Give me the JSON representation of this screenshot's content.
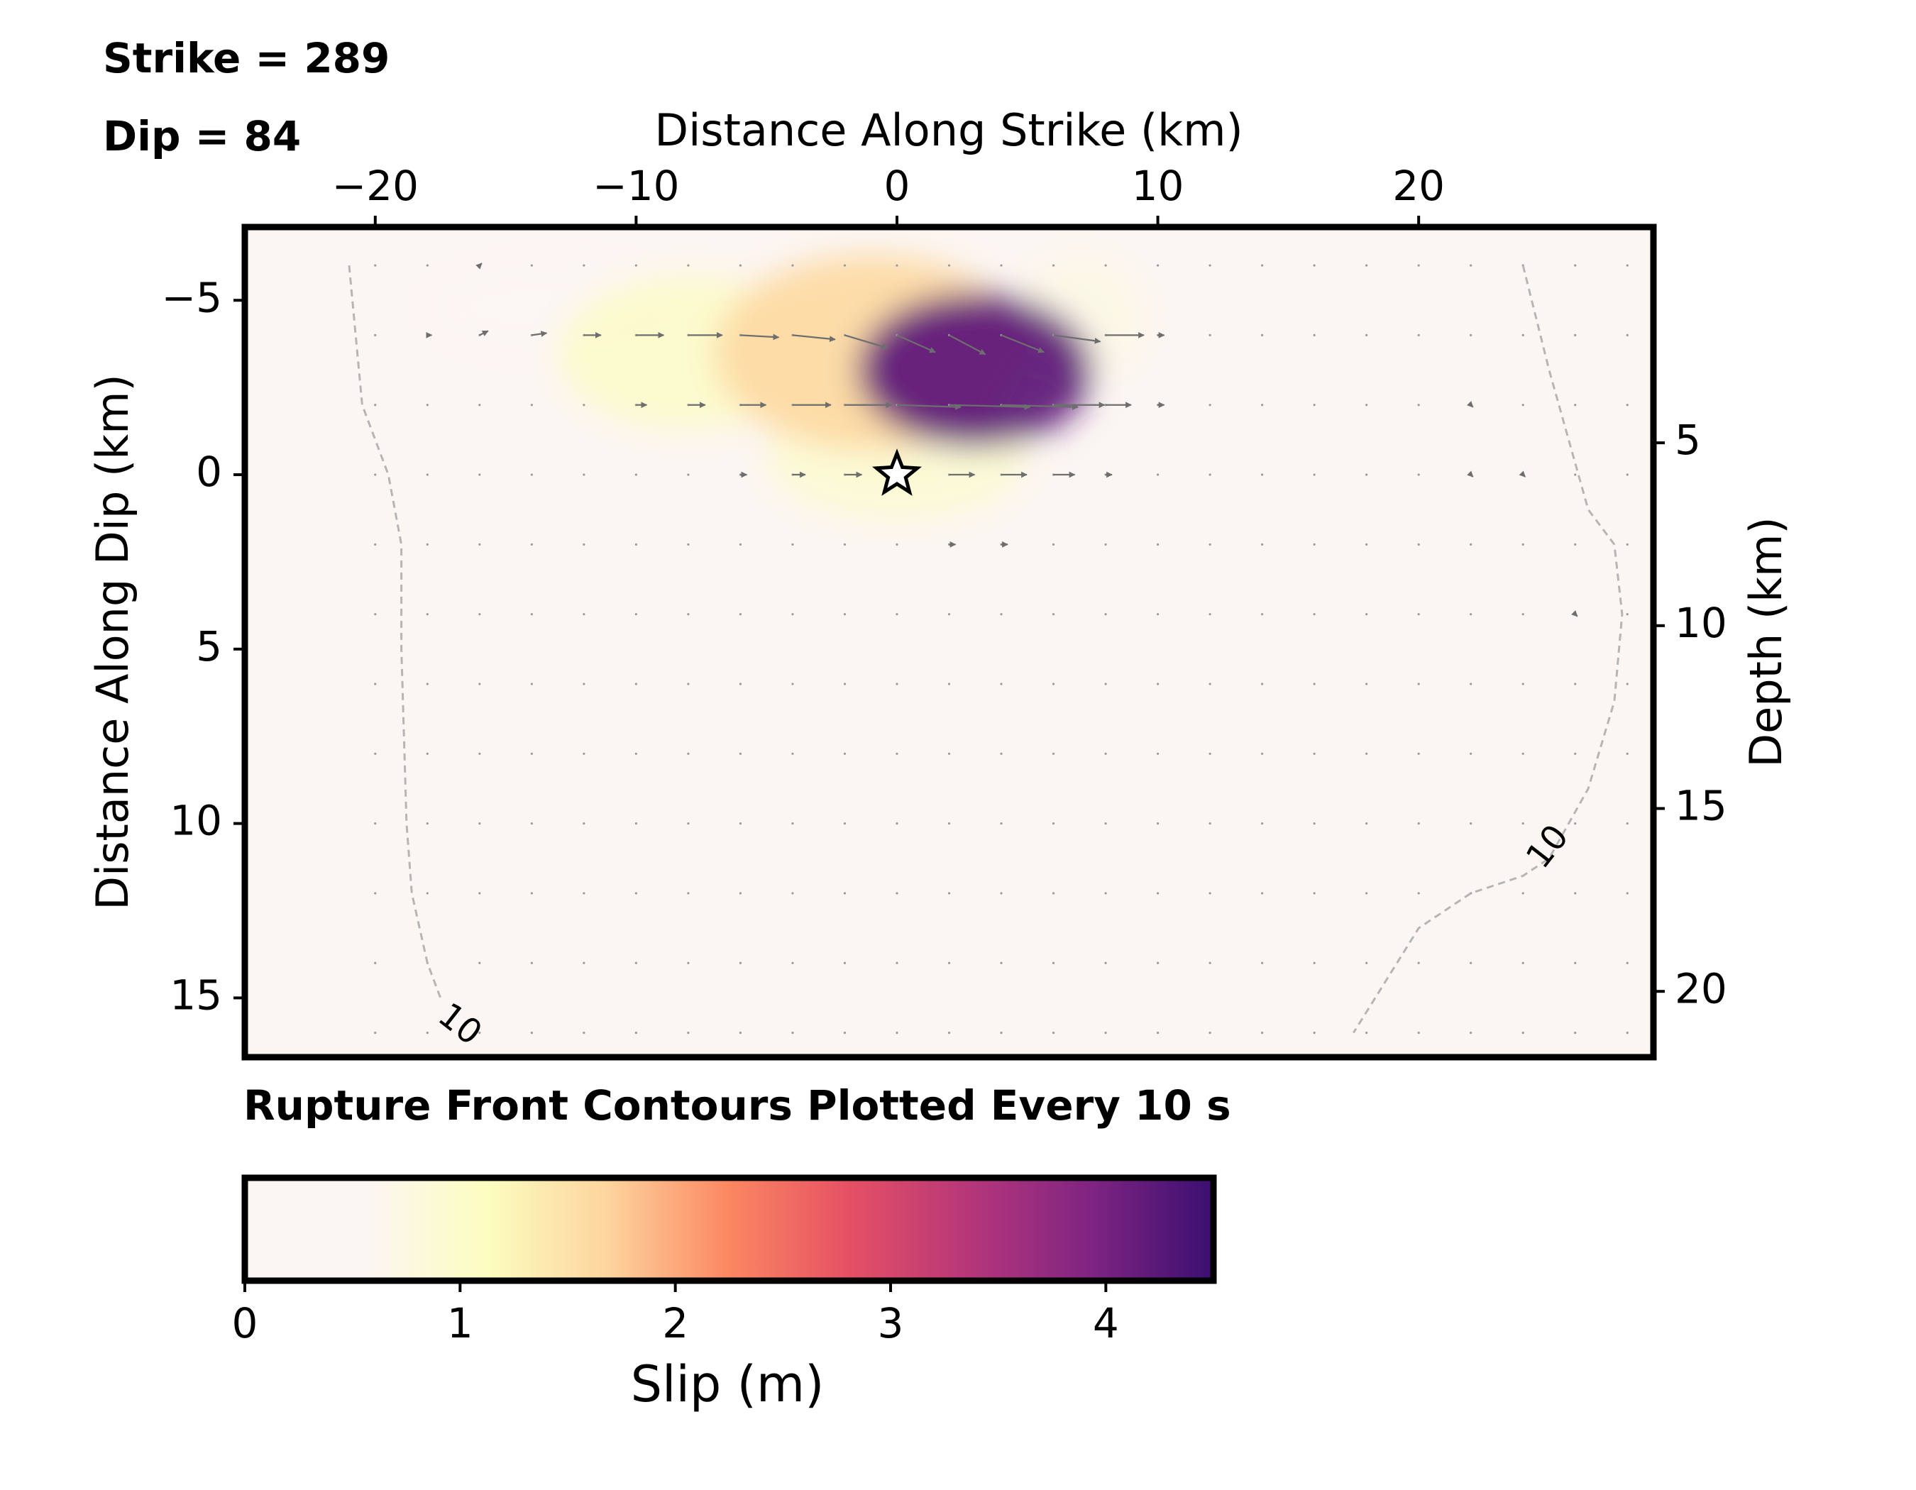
{
  "chart_data": {
    "type": "heatmap",
    "title_lines": [
      "Strike = 289",
      "Dip = 84"
    ],
    "note": "Rupture Front Contours Plotted Every 10 s",
    "xlabel": "Distance Along Strike (km)",
    "ylabel": "Distance Along Dip (km)",
    "y2label": "Depth (km)",
    "xlim": [
      -25,
      29
    ],
    "ylim": [
      16.7,
      -7.1
    ],
    "y2lim": [
      21.8,
      -0.9
    ],
    "xticks": [
      -20,
      -10,
      0,
      10,
      20
    ],
    "xtick_labels": [
      "−20",
      "−10",
      "0",
      "10",
      "20"
    ],
    "yticks": [
      -5,
      0,
      5,
      10,
      15
    ],
    "ytick_labels": [
      "−5",
      "0",
      "5",
      "10",
      "15"
    ],
    "y2ticks": [
      5,
      10,
      15,
      20
    ],
    "y2tick_labels": [
      "5",
      "10",
      "15",
      "20"
    ],
    "colorbar": {
      "label": "Slip (m)",
      "range": [
        0,
        4.5
      ],
      "ticks": [
        0,
        1,
        2,
        3,
        4
      ],
      "tick_labels": [
        "0",
        "1",
        "2",
        "3",
        "4"
      ],
      "colormap": [
        "#fcf6f3",
        "#fcf6f3",
        "#fcfdbf",
        "#fdd49e",
        "#fb8761",
        "#e55064",
        "#b5367a",
        "#7e2482",
        "#3b0f70"
      ]
    },
    "slip_patches": [
      {
        "x": 3,
        "y": -3,
        "sx": 4.5,
        "sy": 2.2,
        "slip": 4.2
      },
      {
        "x": -1,
        "y": -3.5,
        "sx": 6.0,
        "sy": 2.8,
        "slip": 1.6
      },
      {
        "x": -8,
        "y": -3.5,
        "sx": 5.0,
        "sy": 2.2,
        "slip": 1.0
      },
      {
        "x": -13,
        "y": -4.8,
        "sx": 5.0,
        "sy": 1.3,
        "slip": 0.4
      },
      {
        "x": 0,
        "y": -0.5,
        "sx": 5.0,
        "sy": 1.8,
        "slip": 0.9
      },
      {
        "x": 7,
        "y": -4.5,
        "sx": 2.5,
        "sy": 1.8,
        "slip": 0.7
      }
    ],
    "slip_vectors": [
      {
        "x": -18,
        "y": -4,
        "u": 0.2,
        "v": 0
      },
      {
        "x": -16,
        "y": -4,
        "u": 0.4,
        "v": -0.2
      },
      {
        "x": -14,
        "y": -4,
        "u": 0.7,
        "v": -0.1
      },
      {
        "x": -12,
        "y": -4,
        "u": 0.8,
        "v": 0
      },
      {
        "x": -10,
        "y": -4,
        "u": 1.3,
        "v": 0
      },
      {
        "x": -8,
        "y": -4,
        "u": 1.6,
        "v": 0
      },
      {
        "x": -6,
        "y": -4,
        "u": 1.8,
        "v": 0.1
      },
      {
        "x": -4,
        "y": -4,
        "u": 2.0,
        "v": 0.2
      },
      {
        "x": -2,
        "y": -4,
        "u": 2.0,
        "v": 0.6
      },
      {
        "x": 0,
        "y": -4,
        "u": 1.8,
        "v": 0.8
      },
      {
        "x": 2,
        "y": -4,
        "u": 1.7,
        "v": 0.9
      },
      {
        "x": 4,
        "y": -4,
        "u": 2.0,
        "v": 0.8
      },
      {
        "x": 6,
        "y": -4,
        "u": 2.2,
        "v": 0.3
      },
      {
        "x": 8,
        "y": -4,
        "u": 1.8,
        "v": 0
      },
      {
        "x": 10,
        "y": -4,
        "u": 0.3,
        "v": 0
      },
      {
        "x": -10,
        "y": -2,
        "u": 0.5,
        "v": 0
      },
      {
        "x": -8,
        "y": -2,
        "u": 0.8,
        "v": 0
      },
      {
        "x": -6,
        "y": -2,
        "u": 1.2,
        "v": 0
      },
      {
        "x": -4,
        "y": -2,
        "u": 1.8,
        "v": 0
      },
      {
        "x": -2,
        "y": -2,
        "u": 2.2,
        "v": 0
      },
      {
        "x": 0,
        "y": -2,
        "u": 3.0,
        "v": 0.1
      },
      {
        "x": 2,
        "y": -2,
        "u": 3.8,
        "v": 0.1
      },
      {
        "x": 4,
        "y": -2,
        "u": 3.6,
        "v": 0.1
      },
      {
        "x": 6,
        "y": -2,
        "u": 2.4,
        "v": 0
      },
      {
        "x": 8,
        "y": -2,
        "u": 1.2,
        "v": 0
      },
      {
        "x": 10,
        "y": -2,
        "u": 0.3,
        "v": 0
      },
      {
        "x": -6,
        "y": 0,
        "u": 0.3,
        "v": 0
      },
      {
        "x": -4,
        "y": 0,
        "u": 0.6,
        "v": 0
      },
      {
        "x": -2,
        "y": 0,
        "u": 0.8,
        "v": 0
      },
      {
        "x": 2,
        "y": 0,
        "u": 1.2,
        "v": 0
      },
      {
        "x": 4,
        "y": 0,
        "u": 1.2,
        "v": 0
      },
      {
        "x": 6,
        "y": 0,
        "u": 1.0,
        "v": 0
      },
      {
        "x": 8,
        "y": 0,
        "u": 0.3,
        "v": 0
      },
      {
        "x": 2,
        "y": 2,
        "u": 0.3,
        "v": 0
      },
      {
        "x": 4,
        "y": 2,
        "u": 0.3,
        "v": 0
      },
      {
        "x": 22,
        "y": -2,
        "u": 0.1,
        "v": 0.1
      },
      {
        "x": 22,
        "y": 0,
        "u": 0.1,
        "v": 0.1
      },
      {
        "x": 24,
        "y": 0,
        "u": 0.1,
        "v": 0.1
      },
      {
        "x": 26,
        "y": 4,
        "u": 0.1,
        "v": 0.1
      },
      {
        "x": -16,
        "y": -6,
        "u": 0.1,
        "v": -0.1
      }
    ],
    "hypocenter": {
      "x": 0,
      "y": 0
    },
    "rupture_contours": [
      {
        "level": 10,
        "label": "10",
        "points": [
          [
            -21,
            -6
          ],
          [
            -20.5,
            -2
          ],
          [
            -19.5,
            0
          ],
          [
            -19,
            2
          ],
          [
            -19,
            5
          ],
          [
            -18.8,
            10
          ],
          [
            -18.6,
            12
          ],
          [
            -18,
            14
          ],
          [
            -17.5,
            15
          ]
        ]
      },
      {
        "level": 10,
        "label": "10",
        "points": [
          [
            24,
            -6
          ],
          [
            25,
            -3
          ],
          [
            26.5,
            1
          ],
          [
            27.5,
            2
          ],
          [
            27.8,
            4
          ],
          [
            27.5,
            6.5
          ],
          [
            26.5,
            9
          ],
          [
            25,
            11
          ],
          [
            24,
            11.5
          ],
          [
            22,
            12
          ],
          [
            20,
            13
          ],
          [
            17.5,
            16
          ]
        ]
      }
    ],
    "contour_labels": [
      {
        "x": -16.8,
        "y": 15.8,
        "angle": 38,
        "text": "10"
      },
      {
        "x": 25,
        "y": 10.7,
        "angle": -52,
        "text": "10"
      }
    ]
  }
}
